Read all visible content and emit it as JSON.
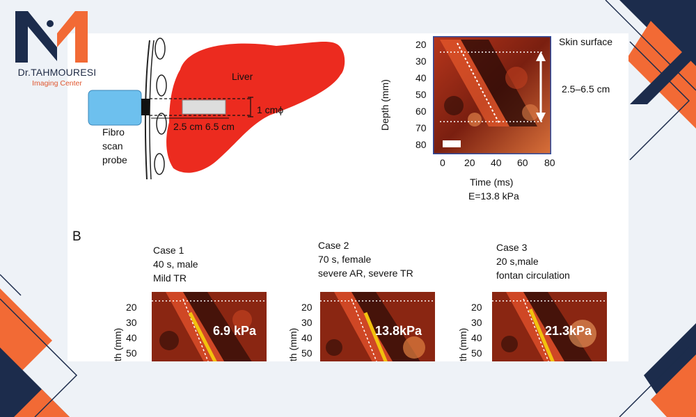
{
  "brand": {
    "name": "Dr.TAHMOURESI",
    "subtitle": "Imaging Center"
  },
  "colors": {
    "liver": "#ec2b1f",
    "probe": "#6dc0ee",
    "navy": "#1c2c4c",
    "orange": "#f26a35",
    "arrow": "#f2c10e"
  },
  "panel_a": {
    "liver_label": "Liver",
    "probe_label": [
      "Fibro",
      "scan",
      "probe"
    ],
    "diameter_label": "1 cmϕ",
    "depth_labels": "2.5 cm 6.5 cm",
    "skin_label": "Skin surface",
    "range_label": "2.5–6.5 cm",
    "y_label": "Depth (mm)",
    "y_ticks": [
      "20",
      "30",
      "40",
      "50",
      "60",
      "70",
      "80"
    ],
    "x_label": "Time (ms)",
    "x_ticks": [
      "0",
      "20",
      "40",
      "60",
      "80"
    ],
    "result": "E=13.8 kPa"
  },
  "panel_b": {
    "label": "B",
    "cases": [
      {
        "lines": [
          "Case 1",
          "40 s, male",
          "Mild TR"
        ],
        "kpa": "6.9 kPa"
      },
      {
        "lines": [
          "Case 2",
          "70 s, female",
          "severe AR, severe TR"
        ],
        "kpa": "13.8kPa"
      },
      {
        "lines": [
          "Case 3",
          "20 s,male",
          "fontan circulation"
        ],
        "kpa": "21.3kPa"
      }
    ],
    "y_label": "th (mm)",
    "y_ticks": [
      "20",
      "30",
      "40",
      "50"
    ]
  }
}
